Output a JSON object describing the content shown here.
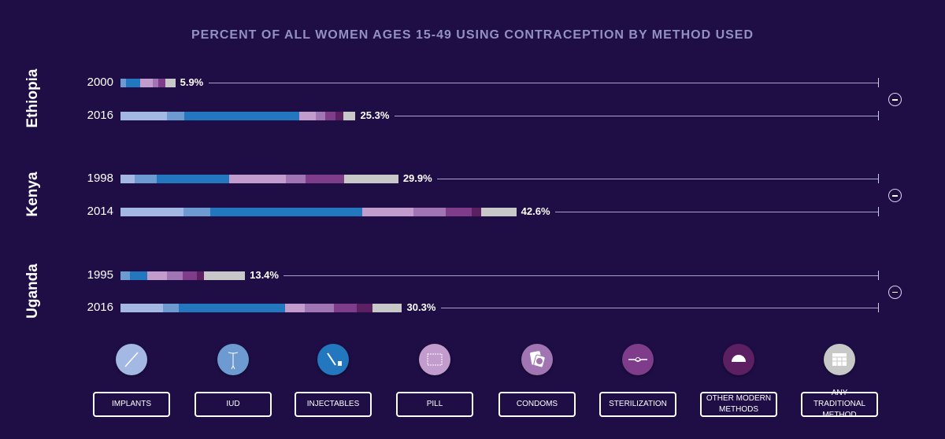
{
  "chart_data": {
    "type": "bar",
    "orientation": "horizontal",
    "stacked": true,
    "title": "PERCENT OF ALL WOMEN AGES 15-49 USING CONTRACEPTION BY METHOD USED",
    "methods": [
      "IMPLANTS",
      "IUD",
      "INJECTABLES",
      "PILL",
      "CONDOMS",
      "STERILIZATION",
      "OTHER MODERN METHODS",
      "ANY TRADITIONAL METHOD"
    ],
    "colors": [
      "#a3b8e2",
      "#6e9ad2",
      "#2277bf",
      "#c19ccc",
      "#a174b3",
      "#7e3c8a",
      "#5c1f62",
      "#c8c8c8"
    ],
    "groups": [
      {
        "country": "Ethiopia",
        "rows": [
          {
            "year": "2000",
            "total": "5.9%",
            "values": [
              0,
              0.6,
              1.5,
              1.4,
              0.6,
              0.7,
              0,
              1.1
            ]
          },
          {
            "year": "2016",
            "total": "25.3%",
            "values": [
              5.0,
              1.9,
              12.3,
              1.8,
              1.0,
              1.1,
              0.9,
              1.3
            ]
          }
        ]
      },
      {
        "country": "Kenya",
        "rows": [
          {
            "year": "1998",
            "total": "29.9%",
            "values": [
              1.5,
              2.4,
              7.8,
              6.1,
              2.1,
              4.2,
              0,
              5.8
            ]
          },
          {
            "year": "2014",
            "total": "42.6%",
            "values": [
              6.8,
              2.9,
              16.3,
              5.5,
              3.5,
              2.8,
              1.0,
              3.8
            ]
          }
        ]
      },
      {
        "country": "Uganda",
        "rows": [
          {
            "year": "1995",
            "total": "13.4%",
            "values": [
              0,
              1.0,
              1.9,
              2.1,
              1.7,
              1.5,
              0.8,
              4.4
            ]
          },
          {
            "year": "2016",
            "total": "30.3%",
            "values": [
              4.6,
              1.7,
              11.4,
              2.1,
              3.2,
              2.4,
              1.7,
              3.2
            ]
          }
        ]
      }
    ],
    "legend_placement": "bottom"
  },
  "legend": {
    "items": [
      {
        "label": "IMPLANTS",
        "icon": "implant-rod-icon"
      },
      {
        "label": "IUD",
        "icon": "iud-icon"
      },
      {
        "label": "INJECTABLES",
        "icon": "syringe-icon"
      },
      {
        "label": "PILL",
        "icon": "pill-pack-icon"
      },
      {
        "label": "CONDOMS",
        "icon": "condom-icon"
      },
      {
        "label": "STERILIZATION",
        "icon": "tubal-tie-icon"
      },
      {
        "label": "OTHER MODERN METHODS",
        "icon": "diaphragm-icon"
      },
      {
        "label": "ANY TRADITIONAL METHOD",
        "icon": "calendar-icon"
      }
    ]
  },
  "controls": {
    "collapse_icon": "minus-circle-icon"
  }
}
